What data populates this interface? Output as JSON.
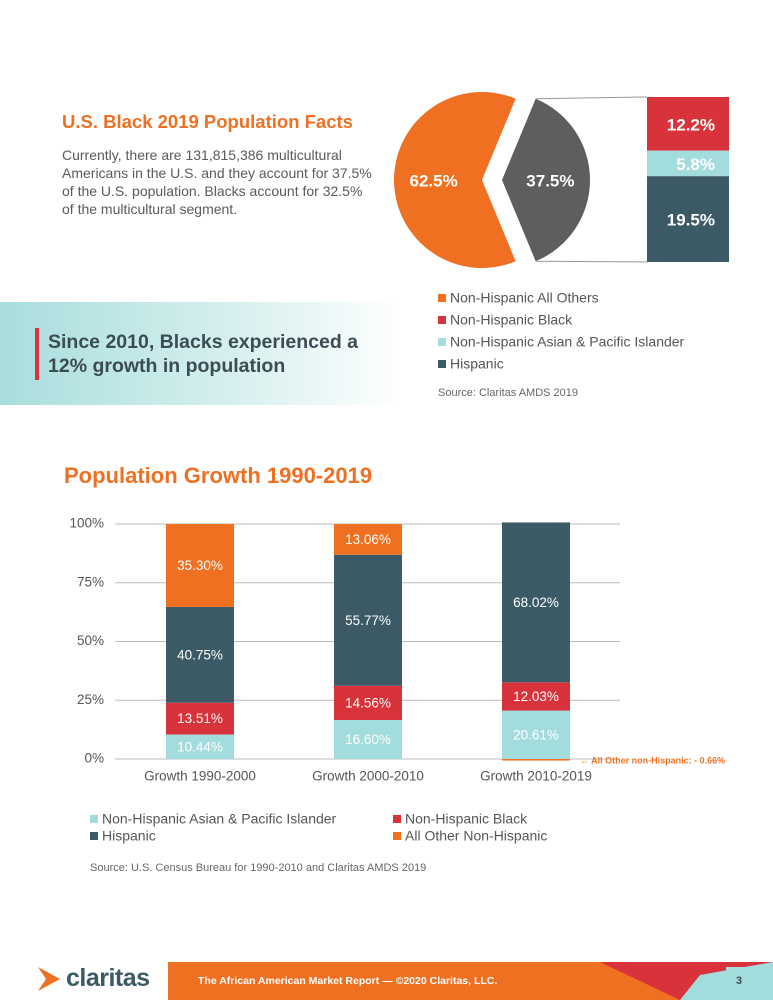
{
  "header": {
    "title": "U.S. Black 2019 Population Facts",
    "body": "Currently, there are 131,815,386 multicultural Americans in the U.S. and they account for 37.5% of the U.S. population. Blacks account for 32.5% of the  multicultural segment."
  },
  "callout": "Since 2010, Blacks experienced a 12% growth in population",
  "chart_data": [
    {
      "type": "pie",
      "categories": [
        "Non-Hispanic All Others",
        null
      ],
      "values": [
        62.5,
        37.5
      ],
      "value_labels": [
        "62.5%",
        "37.5%"
      ],
      "colors": [
        "#f07022",
        "#5e5e5e"
      ],
      "breakdown": {
        "series": [
          {
            "name": "Non-Hispanic Black",
            "color": "#d8323a",
            "values": [
              12.2
            ],
            "value_labels": [
              "12.2%"
            ]
          },
          {
            "name": "Non-Hispanic Asian & Pacific Islander",
            "color": "#a3dcdd",
            "values": [
              5.8
            ],
            "value_labels": [
              "5.8%"
            ]
          },
          {
            "name": "Hispanic",
            "color": "#3c5a66",
            "values": [
              19.5
            ],
            "value_labels": [
              "19.5%"
            ]
          }
        ]
      },
      "source": "Source: Claritas AMDS 2019"
    },
    {
      "type": "bar",
      "stacked": true,
      "title": "Population Growth 1990-2019",
      "categories": [
        "Growth 1990-2000",
        "Growth 2000-2010",
        "Growth 2010-2019"
      ],
      "series": [
        {
          "name": "Non-Hispanic Asian & Pacific Islander",
          "color": "#a3dcdd",
          "values": [
            10.44,
            16.6,
            20.61
          ],
          "value_labels": [
            "10.44%",
            "16.60%",
            "20.61%"
          ]
        },
        {
          "name": "Non-Hispanic Black",
          "color": "#d8323a",
          "values": [
            13.51,
            14.56,
            12.03
          ],
          "value_labels": [
            "13.51%",
            "14.56%",
            "12.03%"
          ]
        },
        {
          "name": "Hispanic",
          "color": "#3c5a66",
          "values": [
            40.75,
            55.77,
            68.02
          ],
          "value_labels": [
            "40.75%",
            "55.77%",
            "68.02%"
          ]
        },
        {
          "name": "All Other Non-Hispanic",
          "color": "#f07022",
          "values": [
            35.3,
            13.06,
            -0.66
          ],
          "value_labels": [
            "35.30%",
            "13.06%",
            null
          ]
        }
      ],
      "annotation": "← All Other non-Hispanic: - 0.66%",
      "ylim": [
        0,
        100
      ],
      "yticks": [
        {
          "value": 0,
          "label": "0%"
        },
        {
          "value": 25,
          "label": "25%"
        },
        {
          "value": 50,
          "label": "50%"
        },
        {
          "value": 75,
          "label": "75%"
        },
        {
          "value": 100,
          "label": "100%"
        }
      ],
      "grid": true,
      "source": "Source: U.S. Census Bureau for 1990-2010 and Claritas AMDS 2019"
    }
  ],
  "footer": {
    "logo": "claritas",
    "text": "The African American Market Report — ©2020 Claritas, LLC.",
    "page": "3"
  }
}
